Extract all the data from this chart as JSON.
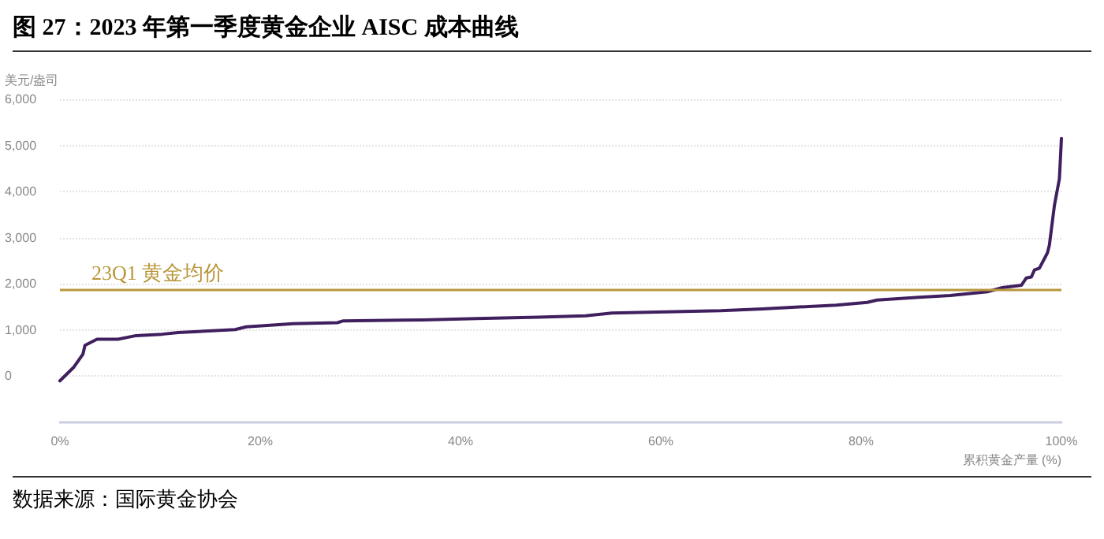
{
  "chart_data": {
    "type": "line",
    "title": "图 27：2023 年第一季度黄金企业 AISC 成本曲线",
    "xlabel": "累积黄金产量 (%)",
    "ylabel": "美元/盎司",
    "annotations": [
      "数据来源：国际黄金协会"
    ],
    "x": [
      0,
      1.4,
      2.3,
      2.5,
      3.7,
      5.8,
      7.6,
      10.2,
      11.8,
      17.5,
      18.6,
      20.7,
      23.3,
      27.7,
      28.3,
      36.3,
      41.6,
      47.8,
      52.5,
      55.1,
      66,
      70.2,
      77.5,
      80.6,
      81.6,
      85.8,
      88.9,
      92.6,
      94.1,
      96,
      96.5,
      97,
      97.3,
      97.8,
      98.6,
      98.8,
      99.1,
      99.3,
      99.8,
      100
    ],
    "series": [
      {
        "color": "#3f1f5e",
        "values": [
          -100,
          200,
          480,
          670,
          800,
          800,
          880,
          910,
          945,
          1010,
          1070,
          1100,
          1140,
          1160,
          1200,
          1220,
          1250,
          1280,
          1310,
          1370,
          1420,
          1460,
          1540,
          1600,
          1650,
          1710,
          1750,
          1830,
          1920,
          1970,
          2130,
          2150,
          2300,
          2340,
          2670,
          2840,
          3360,
          3700,
          4280,
          5150
        ]
      }
    ],
    "xlim": [
      0,
      100
    ],
    "xticks": [
      {
        "value": 0,
        "label": "0%"
      },
      {
        "value": 20,
        "label": "20%"
      },
      {
        "value": 40,
        "label": "40%"
      },
      {
        "value": 60,
        "label": "60%"
      },
      {
        "value": 80,
        "label": "80%"
      },
      {
        "value": 100,
        "label": "100%"
      }
    ],
    "ylim": [
      -1000,
      6000
    ],
    "yticks": [
      {
        "value": 0,
        "label": "0"
      },
      {
        "value": 1000,
        "label": "1,000"
      },
      {
        "value": 2000,
        "label": "2,000"
      },
      {
        "value": 3000,
        "label": "3,000"
      },
      {
        "value": 4000,
        "label": "4,000"
      },
      {
        "value": 5000,
        "label": "5,000"
      },
      {
        "value": 6000,
        "label": "6,000"
      }
    ],
    "grid": "y",
    "marker": "none",
    "line_style": "solid",
    "ref_lines": [
      {
        "axis": "y",
        "value": 1890,
        "label": "23Q1 黄金均价",
        "color": "#b8963a"
      }
    ]
  }
}
